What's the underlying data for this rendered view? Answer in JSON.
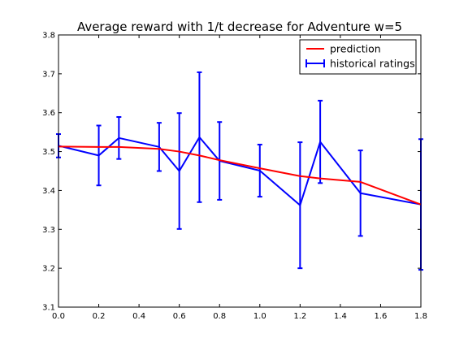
{
  "chart_data": {
    "type": "line",
    "title": "Average reward with 1/t decrease for Adventure w=5",
    "xlabel": "",
    "ylabel": "",
    "xlim": [
      0.0,
      1.8
    ],
    "ylim": [
      3.1,
      3.8
    ],
    "xticks": [
      "0.0",
      "0.2",
      "0.4",
      "0.6",
      "0.8",
      "1.0",
      "1.2",
      "1.4",
      "1.6",
      "1.8"
    ],
    "yticks": [
      "3.1",
      "3.2",
      "3.3",
      "3.4",
      "3.5",
      "3.6",
      "3.7",
      "3.8"
    ],
    "grid": false,
    "legend": {
      "position": "top-right",
      "prediction_label": "prediction",
      "historical_label": "historical ratings"
    },
    "colors": {
      "prediction": "#ff0000",
      "historical": "#0000ff"
    },
    "series": [
      {
        "name": "prediction",
        "x": [
          0.0,
          0.2,
          0.3,
          0.5,
          0.6,
          0.7,
          0.8,
          1.0,
          1.2,
          1.3,
          1.5,
          1.8
        ],
        "values": [
          3.513,
          3.512,
          3.512,
          3.507,
          3.5,
          3.49,
          3.478,
          3.457,
          3.437,
          3.431,
          3.422,
          3.364
        ]
      },
      {
        "name": "historical ratings",
        "x": [
          0.0,
          0.2,
          0.3,
          0.5,
          0.6,
          0.7,
          0.8,
          1.0,
          1.2,
          1.3,
          1.5,
          1.8
        ],
        "values": [
          3.515,
          3.49,
          3.535,
          3.512,
          3.45,
          3.537,
          3.476,
          3.451,
          3.362,
          3.525,
          3.393,
          3.364
        ],
        "yerr": [
          0.03,
          0.077,
          0.054,
          0.062,
          0.149,
          0.167,
          0.1,
          0.067,
          0.162,
          0.106,
          0.11,
          0.168
        ]
      }
    ]
  }
}
